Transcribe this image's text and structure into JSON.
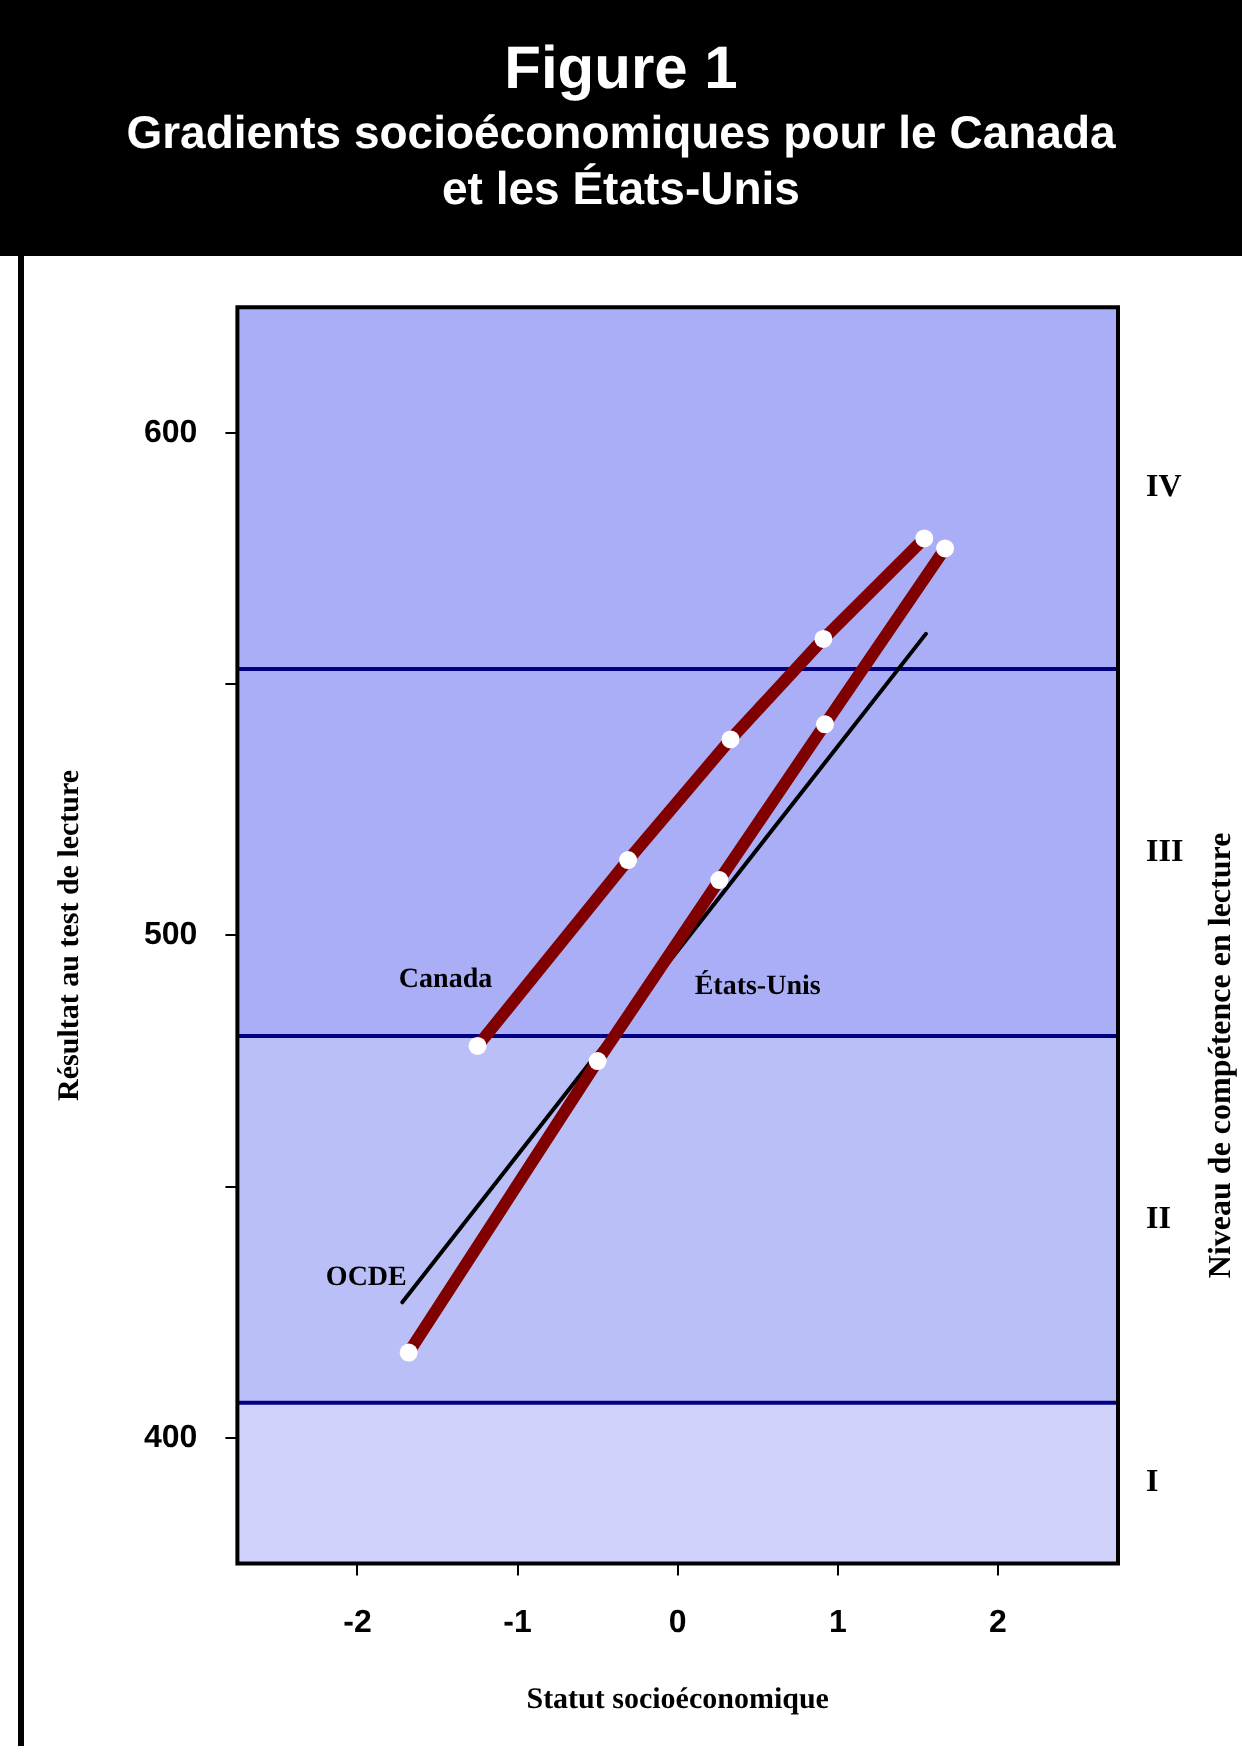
{
  "chart_data": {
    "type": "line",
    "title": "Figure 1",
    "subtitle": "Gradients socioéconomiques pour le Canada et les États-Unis",
    "xlabel": "Statut socioéconomique",
    "ylabel": "Résultat au test de lecture",
    "y2label": "Niveau de compétence en lecture",
    "xlim": [
      -2.75,
      2.75
    ],
    "xticks": [
      -2,
      -1,
      0,
      1,
      2
    ],
    "ylim": [
      375,
      625
    ],
    "yticks": [
      400,
      {
        "value": 450,
        "label": null
      },
      500,
      {
        "value": 550,
        "label": null
      },
      600
    ],
    "grid": false,
    "legend": false,
    "line_style": "solid",
    "bands": [
      {
        "axis": "y",
        "from": 553,
        "to": 625,
        "label": "IV",
        "color": "#aaaef7"
      },
      {
        "axis": "y",
        "from": 480,
        "to": 553,
        "label": "III",
        "color": "#aaaef7"
      },
      {
        "axis": "y",
        "from": 407,
        "to": 480,
        "label": "II",
        "color": "#bbbff8"
      },
      {
        "axis": "y",
        "from": 375,
        "to": 407,
        "label": "I",
        "color": "#d0d2fb"
      }
    ],
    "ref_lines": [
      {
        "axis": "y",
        "value": 553,
        "color": "#000080"
      },
      {
        "axis": "y",
        "value": 480,
        "color": "#000080"
      },
      {
        "axis": "y",
        "value": 407,
        "color": "#000080"
      }
    ],
    "series": [
      {
        "name": "Canada",
        "color": "#800000",
        "marker": "circle",
        "x": [
          -1.25,
          -0.31,
          0.33,
          0.91,
          1.54
        ],
        "values": [
          478,
          515,
          539,
          559,
          579
        ]
      },
      {
        "name": "États-Unis",
        "color": "#800000",
        "marker": "circle",
        "x": [
          -1.68,
          -0.5,
          0.26,
          0.92,
          1.67
        ],
        "values": [
          417,
          475,
          511,
          542,
          577
        ]
      },
      {
        "name": "OCDE",
        "color": "#000000",
        "marker": "none",
        "x": [
          -1.72,
          1.55
        ],
        "values": [
          427,
          560
        ]
      }
    ]
  }
}
